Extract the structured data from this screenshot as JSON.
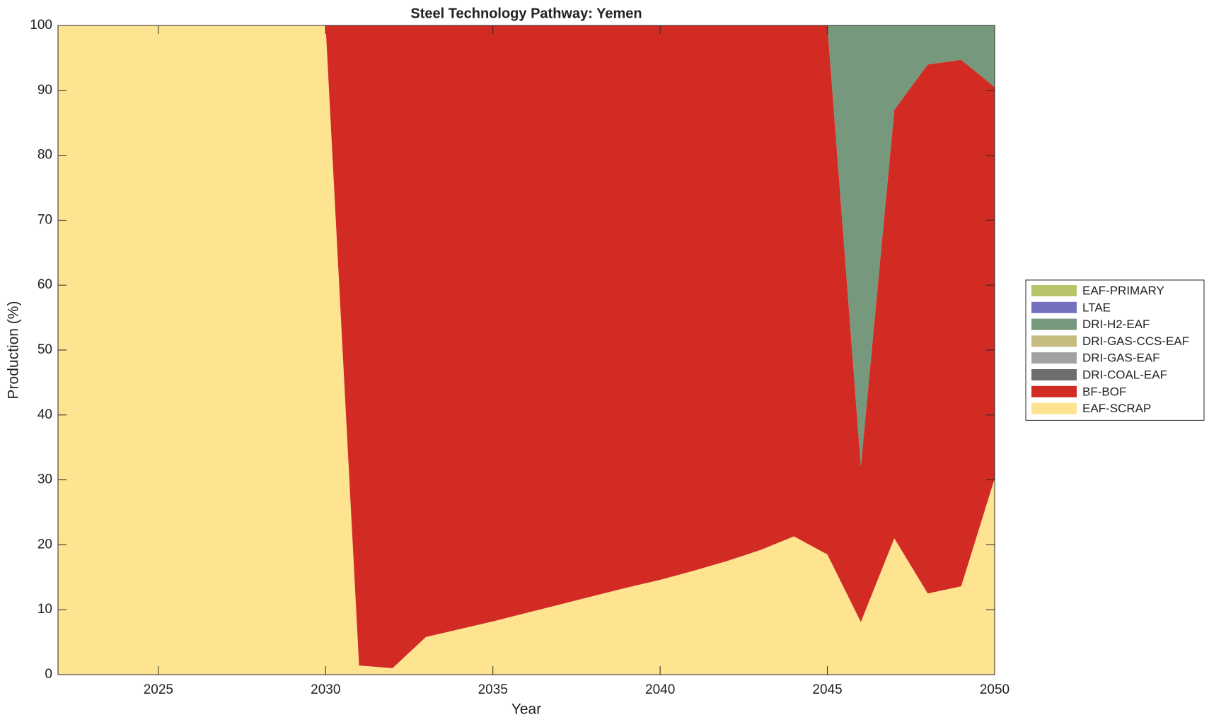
{
  "chart_data": {
    "type": "stacked_area",
    "title": "Steel Technology Pathway: Yemen",
    "xlabel": "Year",
    "ylabel": "Production (%)",
    "x": [
      2022,
      2023,
      2024,
      2025,
      2026,
      2027,
      2028,
      2029,
      2030,
      2031,
      2032,
      2033,
      2034,
      2035,
      2036,
      2037,
      2038,
      2039,
      2040,
      2041,
      2042,
      2043,
      2044,
      2045,
      2046,
      2047,
      2048,
      2049,
      2050
    ],
    "series": [
      {
        "name": "EAF-SCRAP",
        "color": "#fee391",
        "values": [
          100,
          100,
          100,
          100,
          100,
          100,
          100,
          100,
          100,
          1.4,
          1.0,
          5.8,
          7.0,
          8.2,
          9.5,
          10.8,
          12.1,
          13.4,
          14.6,
          16.0,
          17.5,
          19.2,
          21.3,
          18.5,
          8.1,
          21.0,
          12.5,
          13.6,
          30.2
        ]
      },
      {
        "name": "BF-BOF",
        "color": "#d22b24",
        "values": [
          0,
          0,
          0,
          0,
          0,
          0,
          0,
          0,
          0,
          98.6,
          99.0,
          94.2,
          93.0,
          91.8,
          90.5,
          89.2,
          87.9,
          86.6,
          85.4,
          84.0,
          82.5,
          80.8,
          78.7,
          81.5,
          24.0,
          66.0,
          81.5,
          81.1,
          60.3
        ]
      },
      {
        "name": "DRI-COAL-EAF",
        "color": "#6e6e6e",
        "values": [
          0,
          0,
          0,
          0,
          0,
          0,
          0,
          0,
          0,
          0,
          0,
          0,
          0,
          0,
          0,
          0,
          0,
          0,
          0,
          0,
          0,
          0,
          0,
          0,
          0,
          0,
          0,
          0,
          0
        ]
      },
      {
        "name": "DRI-GAS-EAF",
        "color": "#a2a2a2",
        "values": [
          0,
          0,
          0,
          0,
          0,
          0,
          0,
          0,
          0,
          0,
          0,
          0,
          0,
          0,
          0,
          0,
          0,
          0,
          0,
          0,
          0,
          0,
          0,
          0,
          0,
          0,
          0,
          0,
          0
        ]
      },
      {
        "name": "DRI-GAS-CCS-EAF",
        "color": "#c4bc80",
        "values": [
          0,
          0,
          0,
          0,
          0,
          0,
          0,
          0,
          0,
          0,
          0,
          0,
          0,
          0,
          0,
          0,
          0,
          0,
          0,
          0,
          0,
          0,
          0,
          0,
          0,
          0,
          0,
          0,
          0
        ]
      },
      {
        "name": "DRI-H2-EAF",
        "color": "#76997d",
        "values": [
          0,
          0,
          0,
          0,
          0,
          0,
          0,
          0,
          0,
          0,
          0,
          0,
          0,
          0,
          0,
          0,
          0,
          0,
          0,
          0,
          0,
          0,
          0,
          0,
          67.9,
          13.0,
          6.0,
          5.3,
          9.5
        ]
      },
      {
        "name": "LTAE",
        "color": "#7570c0",
        "values": [
          0,
          0,
          0,
          0,
          0,
          0,
          0,
          0,
          0,
          0,
          0,
          0,
          0,
          0,
          0,
          0,
          0,
          0,
          0,
          0,
          0,
          0,
          0,
          0,
          0,
          0,
          0,
          0,
          0
        ]
      },
      {
        "name": "EAF-PRIMARY",
        "color": "#b9c46a",
        "values": [
          0,
          0,
          0,
          0,
          0,
          0,
          0,
          0,
          0,
          0,
          0,
          0,
          0,
          0,
          0,
          0,
          0,
          0,
          0,
          0,
          0,
          0,
          0,
          0,
          0,
          0,
          0,
          0,
          0
        ]
      }
    ],
    "xlim": [
      2022,
      2050
    ],
    "xticks": [
      2025,
      2030,
      2035,
      2040,
      2045,
      2050
    ],
    "ylim": [
      0,
      100
    ],
    "yticks": [
      0,
      10,
      20,
      30,
      40,
      50,
      60,
      70,
      80,
      90,
      100
    ],
    "legend": "right"
  }
}
